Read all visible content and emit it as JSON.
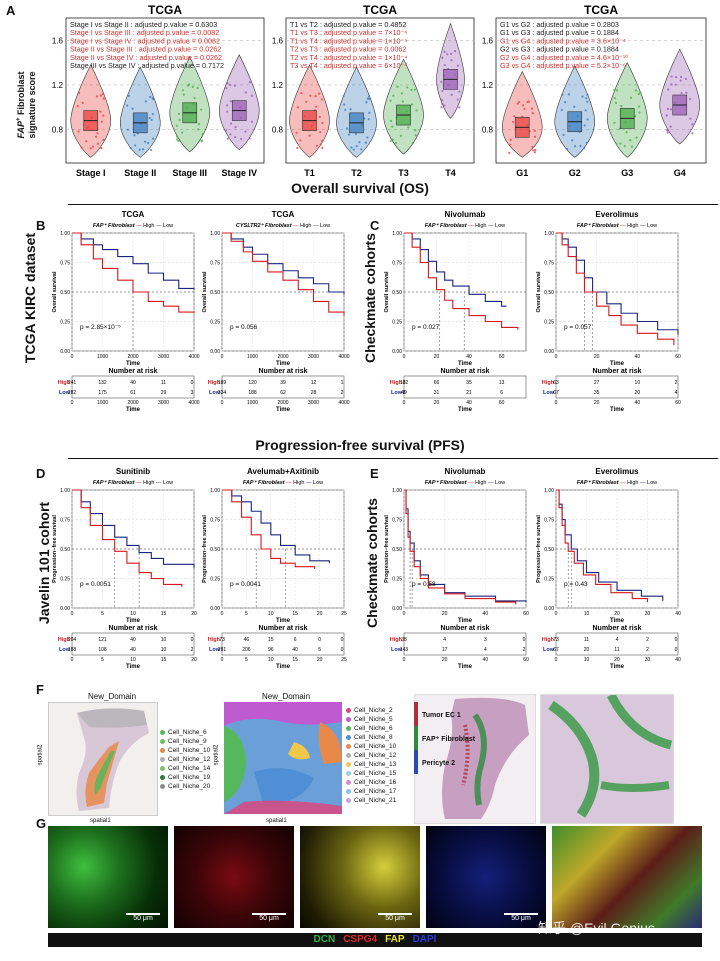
{
  "panel_labels": [
    "A",
    "B",
    "C",
    "D",
    "E",
    "F",
    "G"
  ],
  "panelA": {
    "ylabel_italic": "FAP",
    "ylabel_sup": "+",
    "ylabel_rest": " Fibroblast",
    "ylabel_line2": "signature score",
    "yticks": [
      "0.8",
      "1.2",
      "1.6"
    ],
    "subpanels": [
      {
        "title": "TCGA",
        "categories": [
          "Stage I",
          "Stage II",
          "Stage III",
          "Stage IV"
        ],
        "colors": [
          "#e8413e",
          "#3c7ebf",
          "#4bab4a",
          "#9b5fb5"
        ],
        "stats": [
          {
            "text": "Stage I vs Stage II : adjusted p.value = 0.6303",
            "sig": false
          },
          {
            "text": "Stage I vs Stage III : adjusted p.value = 0.0082",
            "sig": true
          },
          {
            "text": "Stage I vs Stage IV : adjusted p.value = 0.0082",
            "sig": true
          },
          {
            "text": "Stage II vs Stage III : adjusted p.value = 0.0262",
            "sig": true
          },
          {
            "text": "Stage II vs Stage IV : adjusted p.value = 0.0262",
            "sig": true
          },
          {
            "text": "Stage III vs Stage IV : adjusted p.value = 0.7172",
            "sig": false
          }
        ],
        "medians": [
          0.88,
          0.86,
          0.95,
          0.97
        ]
      },
      {
        "title": "TCGA",
        "categories": [
          "T1",
          "T2",
          "T3",
          "T4"
        ],
        "colors": [
          "#e8413e",
          "#3c7ebf",
          "#4bab4a",
          "#9b5fb5"
        ],
        "stats": [
          {
            "text": "T1 vs T2 : adjusted p.value = 0.4852",
            "sig": false
          },
          {
            "text": "T1 vs T3 : adjusted p.value = 7×10⁻⁶",
            "sig": true
          },
          {
            "text": "T1 vs T4 : adjusted p.value = 1×10⁻⁵",
            "sig": true
          },
          {
            "text": "T2 vs T3 : adjusted p.value = 0.0062",
            "sig": true
          },
          {
            "text": "T2 vs T4 : adjusted p.value = 1×10⁻⁴",
            "sig": true
          },
          {
            "text": "T3 vs T4 : adjusted p.value = 6×10⁻⁴",
            "sig": true
          }
        ],
        "medians": [
          0.88,
          0.86,
          0.93,
          1.25
        ]
      },
      {
        "title": "TCGA",
        "categories": [
          "G1",
          "G2",
          "G3",
          "G4"
        ],
        "colors": [
          "#e8413e",
          "#3c7ebf",
          "#4bab4a",
          "#9b5fb5"
        ],
        "stats": [
          {
            "text": "G1 vs G2 : adjusted p.value = 0.2803",
            "sig": false
          },
          {
            "text": "G1 vs G3 : adjusted p.value = 0.1884",
            "sig": false
          },
          {
            "text": "G1 vs G4 : adjusted p.value = 3.6×10⁻⁴",
            "sig": true
          },
          {
            "text": "G2 vs G3 : adjusted p.value = 0.1884",
            "sig": false
          },
          {
            "text": "G2 vs G4 : adjusted p.value = 4.6×10⁻¹⁰",
            "sig": true
          },
          {
            "text": "G3 vs G4 : adjusted p.value = 5.2×10⁻⁶",
            "sig": true
          }
        ],
        "medians": [
          0.82,
          0.87,
          0.9,
          1.02
        ]
      }
    ]
  },
  "section_os": "Overall survival (OS)",
  "section_pfs": "Progression-free survival  (PFS)",
  "side_labels": {
    "b": "TCGA KIRC dataset",
    "c": "Checkmate cohorts",
    "d": "Javelin 101 cohort",
    "e": "Checkmate cohorts"
  },
  "km_common": {
    "high": "High",
    "low": "Low",
    "risk_title": "Number at risk",
    "high_color": "#d7191c",
    "low_color": "#1a237e"
  },
  "km_plots": [
    {
      "id": "b1",
      "title": "TCGA",
      "legend_prefix": "FAP⁺ Fibroblast",
      "ylabel": "Overall survival",
      "xlabel": "Time",
      "xticks": [
        "0",
        "1000",
        "2000",
        "3000",
        "4000"
      ],
      "yticks": [
        "0.00",
        "0.25",
        "0.50",
        "0.75",
        "1.00"
      ],
      "pval": "p = 2.85×10⁻⁵",
      "xmax": 4000,
      "median_high": 2000,
      "median_low": null,
      "high": [
        [
          0,
          1
        ],
        [
          300,
          0.9
        ],
        [
          700,
          0.78
        ],
        [
          1000,
          0.7
        ],
        [
          1500,
          0.6
        ],
        [
          2000,
          0.5
        ],
        [
          2500,
          0.42
        ],
        [
          3000,
          0.38
        ],
        [
          3500,
          0.33
        ],
        [
          4000,
          0.32
        ]
      ],
      "low": [
        [
          0,
          1
        ],
        [
          300,
          0.95
        ],
        [
          700,
          0.9
        ],
        [
          1000,
          0.86
        ],
        [
          1500,
          0.8
        ],
        [
          2000,
          0.74
        ],
        [
          2500,
          0.66
        ],
        [
          3000,
          0.6
        ],
        [
          3500,
          0.53
        ],
        [
          4000,
          0.52
        ]
      ],
      "risk_high": [
        "241",
        "132",
        "40",
        "11",
        "0"
      ],
      "risk_low": [
        "282",
        "175",
        "61",
        "29",
        "3"
      ]
    },
    {
      "id": "b2",
      "title": "TCGA",
      "legend_prefix": "CYSLTR2⁺ Fibroblast",
      "ylabel": "Overall survival",
      "xlabel": "Time",
      "xticks": [
        "0",
        "1000",
        "2000",
        "3000",
        "4000"
      ],
      "yticks": [
        "0.00",
        "0.25",
        "0.50",
        "0.75",
        "1.00"
      ],
      "pval": "p = 0.056",
      "xmax": 4000,
      "median_high": null,
      "median_low": null,
      "high": [
        [
          0,
          1
        ],
        [
          300,
          0.93
        ],
        [
          700,
          0.84
        ],
        [
          1000,
          0.76
        ],
        [
          1500,
          0.67
        ],
        [
          2000,
          0.6
        ],
        [
          2500,
          0.52
        ],
        [
          3000,
          0.42
        ],
        [
          3500,
          0.33
        ],
        [
          4000,
          0.3
        ]
      ],
      "low": [
        [
          0,
          1
        ],
        [
          300,
          0.95
        ],
        [
          700,
          0.88
        ],
        [
          1000,
          0.82
        ],
        [
          1500,
          0.74
        ],
        [
          2000,
          0.68
        ],
        [
          2500,
          0.62
        ],
        [
          3000,
          0.57
        ],
        [
          3500,
          0.5
        ],
        [
          4000,
          0.48
        ]
      ],
      "risk_high": [
        "189",
        "120",
        "39",
        "12",
        "1"
      ],
      "risk_low": [
        "334",
        "188",
        "62",
        "28",
        "2"
      ]
    },
    {
      "id": "c1",
      "title": "Nivolumab",
      "legend_prefix": "FAP⁺ Fibroblast",
      "ylabel": "Overall survival",
      "xlabel": "Time",
      "xticks": [
        "0",
        "20",
        "40",
        "60"
      ],
      "yticks": [
        "0.00",
        "0.25",
        "0.50",
        "0.75",
        "1.00"
      ],
      "pval": "p = 0.027",
      "xmax": 75,
      "median_high": 22,
      "median_low": 37,
      "high": [
        [
          0,
          1
        ],
        [
          5,
          0.88
        ],
        [
          10,
          0.75
        ],
        [
          15,
          0.62
        ],
        [
          20,
          0.52
        ],
        [
          25,
          0.43
        ],
        [
          30,
          0.36
        ],
        [
          40,
          0.3
        ],
        [
          50,
          0.25
        ],
        [
          60,
          0.2
        ],
        [
          70,
          0.18
        ]
      ],
      "low": [
        [
          0,
          1
        ],
        [
          5,
          0.95
        ],
        [
          10,
          0.86
        ],
        [
          15,
          0.76
        ],
        [
          20,
          0.67
        ],
        [
          25,
          0.6
        ],
        [
          30,
          0.55
        ],
        [
          40,
          0.48
        ],
        [
          50,
          0.42
        ],
        [
          60,
          0.38
        ],
        [
          63,
          0.38
        ]
      ],
      "risk_high": [
        "132",
        "66",
        "35",
        "13",
        "0"
      ],
      "risk_low": [
        "49",
        "31",
        "21",
        "6",
        "0"
      ]
    },
    {
      "id": "c2",
      "title": "Everolimus",
      "legend_prefix": "FAP⁺ Fibroblast",
      "ylabel": "Overall survival",
      "xlabel": "Time",
      "xticks": [
        "0",
        "20",
        "40",
        "60"
      ],
      "yticks": [
        "0.00",
        "0.25",
        "0.50",
        "0.75",
        "1.00"
      ],
      "pval": "p = 0.057",
      "xmax": 60,
      "median_high": 14,
      "median_low": 18,
      "high": [
        [
          0,
          1
        ],
        [
          3,
          0.9
        ],
        [
          6,
          0.8
        ],
        [
          10,
          0.66
        ],
        [
          14,
          0.5
        ],
        [
          20,
          0.38
        ],
        [
          26,
          0.3
        ],
        [
          32,
          0.22
        ],
        [
          40,
          0.15
        ],
        [
          50,
          0.1
        ],
        [
          58,
          0.05
        ]
      ],
      "low": [
        [
          0,
          1
        ],
        [
          3,
          0.95
        ],
        [
          6,
          0.88
        ],
        [
          10,
          0.77
        ],
        [
          14,
          0.62
        ],
        [
          18,
          0.5
        ],
        [
          25,
          0.4
        ],
        [
          32,
          0.32
        ],
        [
          40,
          0.25
        ],
        [
          50,
          0.18
        ],
        [
          60,
          0.14
        ]
      ],
      "risk_high": [
        "63",
        "27",
        "10",
        "2"
      ],
      "risk_low": [
        "67",
        "35",
        "20",
        "4"
      ]
    },
    {
      "id": "d1",
      "title": "Sunitinib",
      "legend_prefix": "FAP⁺ Fibroblast",
      "ylabel": "Progression−free survival",
      "xlabel": "Time",
      "xticks": [
        "0",
        "5",
        "10",
        "15",
        "20"
      ],
      "yticks": [
        "0.00",
        "0.25",
        "0.50",
        "0.75",
        "1.00"
      ],
      "pval": "p = 0.0051",
      "xmax": 20,
      "median_high": 7,
      "median_low": 11,
      "high": [
        [
          0,
          1
        ],
        [
          1.5,
          0.85
        ],
        [
          3,
          0.7
        ],
        [
          5,
          0.58
        ],
        [
          7,
          0.48
        ],
        [
          9,
          0.38
        ],
        [
          11,
          0.3
        ],
        [
          13,
          0.25
        ],
        [
          15,
          0.2
        ],
        [
          18,
          0.18
        ]
      ],
      "low": [
        [
          0,
          1
        ],
        [
          1.5,
          0.9
        ],
        [
          3,
          0.8
        ],
        [
          5,
          0.7
        ],
        [
          7,
          0.6
        ],
        [
          9,
          0.53
        ],
        [
          11,
          0.47
        ],
        [
          13,
          0.42
        ],
        [
          15,
          0.37
        ],
        [
          20,
          0.34
        ]
      ],
      "risk_high": [
        "204",
        "121",
        "40",
        "10",
        "0"
      ],
      "risk_low": [
        "188",
        "108",
        "40",
        "10",
        "2"
      ]
    },
    {
      "id": "d2",
      "title": "Avelumab+Axitinib",
      "legend_prefix": "FAP⁺ Fibroblast",
      "ylabel": "Progression−free survival",
      "xlabel": "Time",
      "xticks": [
        "0",
        "5",
        "10",
        "15",
        "20",
        "25"
      ],
      "yticks": [
        "0.00",
        "0.25",
        "0.50",
        "0.75",
        "1.00"
      ],
      "pval": "p = 0.0041",
      "xmax": 25,
      "median_high": 7,
      "median_low": 13,
      "high": [
        [
          0,
          1
        ],
        [
          2,
          0.9
        ],
        [
          4,
          0.77
        ],
        [
          6,
          0.62
        ],
        [
          8,
          0.5
        ],
        [
          10,
          0.42
        ],
        [
          12,
          0.38
        ],
        [
          15,
          0.35
        ],
        [
          19,
          0.33
        ]
      ],
      "low": [
        [
          0,
          1
        ],
        [
          2,
          0.95
        ],
        [
          4,
          0.9
        ],
        [
          6,
          0.82
        ],
        [
          8,
          0.72
        ],
        [
          10,
          0.62
        ],
        [
          12,
          0.53
        ],
        [
          15,
          0.45
        ],
        [
          18,
          0.4
        ],
        [
          22,
          0.38
        ]
      ],
      "risk_high": [
        "73",
        "46",
        "15",
        "6",
        "0",
        "0"
      ],
      "risk_low": [
        "281",
        "206",
        "96",
        "40",
        "5",
        "0"
      ]
    },
    {
      "id": "e1",
      "title": "Nivolumab",
      "legend_prefix": "FAP⁺ Fibroblast",
      "ylabel": "Progression−free survival",
      "xlabel": "Time",
      "xticks": [
        "0",
        "20",
        "40",
        "60"
      ],
      "yticks": [
        "0.00",
        "0.25",
        "0.50",
        "0.75",
        "1.00"
      ],
      "pval": "p = 0.58",
      "xmax": 60,
      "median_high": 3,
      "median_low": 4,
      "high": [
        [
          0,
          1
        ],
        [
          1,
          0.8
        ],
        [
          2,
          0.6
        ],
        [
          3,
          0.48
        ],
        [
          5,
          0.35
        ],
        [
          8,
          0.25
        ],
        [
          12,
          0.17
        ],
        [
          20,
          0.12
        ],
        [
          30,
          0.08
        ],
        [
          45,
          0.05
        ],
        [
          55,
          0.03
        ]
      ],
      "low": [
        [
          0,
          1
        ],
        [
          1,
          0.84
        ],
        [
          2,
          0.65
        ],
        [
          3,
          0.55
        ],
        [
          5,
          0.4
        ],
        [
          8,
          0.28
        ],
        [
          12,
          0.2
        ],
        [
          20,
          0.13
        ],
        [
          30,
          0.1
        ],
        [
          45,
          0.06
        ],
        [
          60,
          0.05
        ]
      ],
      "risk_high": [
        "38",
        "4",
        "3",
        "0"
      ],
      "risk_low": [
        "143",
        "17",
        "4",
        "2"
      ]
    },
    {
      "id": "e2",
      "title": "Everolimus",
      "legend_prefix": "FAP⁺ Fibroblast",
      "ylabel": "Progression−free survival",
      "xlabel": "Time",
      "xticks": [
        "0",
        "10",
        "20",
        "30",
        "40"
      ],
      "yticks": [
        "0.00",
        "0.25",
        "0.50",
        "0.75",
        "1.00"
      ],
      "pval": "p = 0.43",
      "xmax": 40,
      "median_high": 4,
      "median_low": 5,
      "high": [
        [
          0,
          1
        ],
        [
          1,
          0.85
        ],
        [
          2,
          0.7
        ],
        [
          3,
          0.55
        ],
        [
          4,
          0.48
        ],
        [
          6,
          0.38
        ],
        [
          9,
          0.28
        ],
        [
          13,
          0.2
        ],
        [
          18,
          0.13
        ],
        [
          25,
          0.08
        ],
        [
          30,
          0.05
        ]
      ],
      "low": [
        [
          0,
          1
        ],
        [
          1,
          0.88
        ],
        [
          2,
          0.75
        ],
        [
          3,
          0.62
        ],
        [
          5,
          0.5
        ],
        [
          7,
          0.4
        ],
        [
          10,
          0.3
        ],
        [
          14,
          0.22
        ],
        [
          20,
          0.15
        ],
        [
          28,
          0.1
        ],
        [
          35,
          0.06
        ]
      ],
      "risk_high": [
        "73",
        "11",
        "4",
        "2",
        "0"
      ],
      "risk_low": [
        "67",
        "20",
        "11",
        "2",
        "0"
      ]
    }
  ],
  "panelF": {
    "title1": "New_Domain",
    "title2": "New_Domain",
    "axis_x": "spatial1",
    "axis_y": "spatial2",
    "legend1": [
      {
        "label": "Cell_Niche_6",
        "color": "#55b85a"
      },
      {
        "label": "Cell_Niche_9",
        "color": "#6dbf6a"
      },
      {
        "label": "Cell_Niche_10",
        "color": "#e8894a"
      },
      {
        "label": "Cell_Niche_12",
        "color": "#b0b0b0"
      },
      {
        "label": "Cell_Niche_14",
        "color": "#7fbf6a"
      },
      {
        "label": "Cell_Niche_19",
        "color": "#2d7a3b"
      },
      {
        "label": "Cell_Niche_20",
        "color": "#8a8a8a"
      }
    ],
    "legend2": [
      {
        "label": "Cell_Niche_2",
        "color": "#e0447a"
      },
      {
        "label": "Cell_Niche_5",
        "color": "#c05ad0"
      },
      {
        "label": "Cell_Niche_6",
        "color": "#55b85a"
      },
      {
        "label": "Cell_Niche_8",
        "color": "#4f8fd6"
      },
      {
        "label": "Cell_Niche_10",
        "color": "#e8894a"
      },
      {
        "label": "Cell_Niche_12",
        "color": "#b0b0b0"
      },
      {
        "label": "Cell_Niche_13",
        "color": "#f2c84b"
      },
      {
        "label": "Cell_Niche_15",
        "color": "#9ad0e0"
      },
      {
        "label": "Cell_Niche_16",
        "color": "#d98ad2"
      },
      {
        "label": "Cell_Niche_17",
        "color": "#8bc3f0"
      },
      {
        "label": "Cell_Niche_21",
        "color": "#c7a2e0"
      }
    ],
    "legend3": [
      {
        "label": "Tumor EC 1",
        "color": "#b0303a"
      },
      {
        "label": "FAP⁺ Fibroblast",
        "color": "#2e8b3e"
      },
      {
        "label": "Pericyte 2",
        "color": "#2a4cb0"
      }
    ]
  },
  "panelG": {
    "scale": "50 μm",
    "markers": [
      {
        "label": "DCN",
        "color": "#2bb34a"
      },
      {
        "label": "CSPG4",
        "color": "#e02530"
      },
      {
        "label": "FAP",
        "color": "#e8e02a"
      },
      {
        "label": "DAPI",
        "color": "#2a3ae0"
      }
    ],
    "watermark": "知乎 @Evil Genius"
  }
}
